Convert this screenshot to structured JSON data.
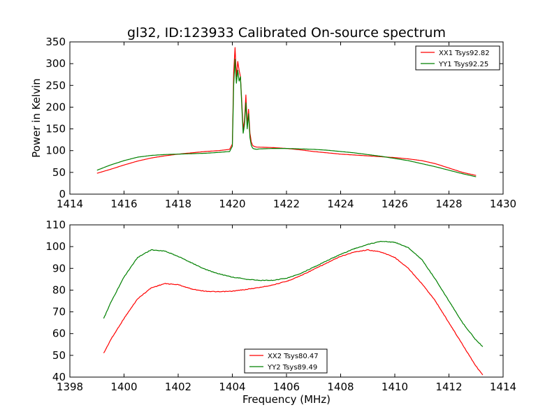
{
  "figure": {
    "title": "gl32, ID:123933 Calibrated On-source spectrum",
    "xlabel": "Frequency (MHz)"
  },
  "chart_data": [
    {
      "type": "line",
      "title": "gl32, ID:123933 Calibrated On-source spectrum",
      "xlabel": "",
      "ylabel": "Power in Kelvin",
      "xlim": [
        1414,
        1430
      ],
      "ylim": [
        0,
        350
      ],
      "xticks": [
        1414,
        1416,
        1418,
        1420,
        1422,
        1424,
        1426,
        1428,
        1430
      ],
      "yticks": [
        0,
        50,
        100,
        150,
        200,
        250,
        300,
        350
      ],
      "legend": "top-right",
      "series": [
        {
          "name": "XX1 Tsys92.82",
          "color": "#ff0000",
          "x": [
            1415.0,
            1415.5,
            1416.0,
            1416.5,
            1417.0,
            1417.5,
            1418.0,
            1418.5,
            1419.0,
            1419.5,
            1419.9,
            1420.0,
            1420.05,
            1420.1,
            1420.15,
            1420.2,
            1420.25,
            1420.3,
            1420.35,
            1420.4,
            1420.45,
            1420.5,
            1420.55,
            1420.6,
            1420.65,
            1420.7,
            1420.75,
            1420.8,
            1420.9,
            1421.0,
            1421.5,
            1422.0,
            1422.5,
            1423.0,
            1423.5,
            1424.0,
            1424.5,
            1425.0,
            1425.5,
            1426.0,
            1426.5,
            1427.0,
            1427.5,
            1428.0,
            1428.5,
            1429.0
          ],
          "values": [
            48,
            57,
            67,
            76,
            83,
            88,
            92,
            95,
            98,
            100,
            103,
            115,
            280,
            337,
            270,
            305,
            285,
            270,
            210,
            150,
            170,
            228,
            160,
            195,
            140,
            120,
            112,
            110,
            108,
            108,
            107,
            105,
            102,
            98,
            95,
            92,
            90,
            88,
            86,
            84,
            81,
            77,
            70,
            60,
            50,
            43
          ]
        },
        {
          "name": "YY1 Tsys92.25",
          "color": "#008000",
          "x": [
            1415.0,
            1415.5,
            1416.0,
            1416.5,
            1417.0,
            1417.5,
            1418.0,
            1418.5,
            1419.0,
            1419.5,
            1419.9,
            1420.0,
            1420.05,
            1420.1,
            1420.15,
            1420.2,
            1420.25,
            1420.3,
            1420.35,
            1420.4,
            1420.45,
            1420.5,
            1420.55,
            1420.6,
            1420.65,
            1420.7,
            1420.75,
            1420.8,
            1420.9,
            1421.0,
            1421.5,
            1422.0,
            1422.5,
            1423.0,
            1423.5,
            1424.0,
            1424.5,
            1425.0,
            1425.5,
            1426.0,
            1426.5,
            1427.0,
            1427.5,
            1428.0,
            1428.5,
            1429.0
          ],
          "values": [
            55,
            67,
            77,
            85,
            89,
            91,
            92,
            93,
            94,
            96,
            98,
            110,
            250,
            310,
            255,
            285,
            260,
            270,
            200,
            140,
            160,
            210,
            150,
            185,
            130,
            112,
            106,
            104,
            103,
            104,
            105,
            105,
            104,
            103,
            101,
            98,
            95,
            91,
            87,
            82,
            77,
            70,
            63,
            55,
            47,
            40
          ]
        }
      ]
    },
    {
      "type": "line",
      "title": "",
      "xlabel": "Frequency (MHz)",
      "ylabel": "",
      "xlim": [
        1398,
        1414
      ],
      "ylim": [
        40,
        110
      ],
      "xticks": [
        1398,
        1400,
        1402,
        1404,
        1406,
        1408,
        1410,
        1412,
        1414
      ],
      "yticks": [
        40,
        50,
        60,
        70,
        80,
        90,
        100,
        110
      ],
      "legend": "bottom-center",
      "series": [
        {
          "name": "XX2 Tsys80.47",
          "color": "#ff0000",
          "x": [
            1399.25,
            1399.5,
            1400.0,
            1400.5,
            1401.0,
            1401.5,
            1402.0,
            1402.5,
            1403.0,
            1403.5,
            1404.0,
            1404.5,
            1405.0,
            1405.5,
            1406.0,
            1406.5,
            1407.0,
            1407.5,
            1408.0,
            1408.5,
            1409.0,
            1409.5,
            1410.0,
            1410.5,
            1411.0,
            1411.5,
            1412.0,
            1412.5,
            1413.0,
            1413.25
          ],
          "values": [
            51,
            57,
            67,
            76,
            81,
            83,
            82.5,
            80.5,
            79.5,
            79.2,
            79.5,
            80.3,
            81.2,
            82.4,
            84,
            86.5,
            89.5,
            92.5,
            95.5,
            97.5,
            98.5,
            97.5,
            95,
            90,
            83,
            75,
            65,
            55,
            45,
            41
          ]
        },
        {
          "name": "YY2 Tsys89.49",
          "color": "#008000",
          "x": [
            1399.25,
            1399.5,
            1400.0,
            1400.5,
            1401.0,
            1401.5,
            1402.0,
            1402.5,
            1403.0,
            1403.5,
            1404.0,
            1404.5,
            1405.0,
            1405.5,
            1406.0,
            1406.5,
            1407.0,
            1407.5,
            1408.0,
            1408.5,
            1409.0,
            1409.5,
            1410.0,
            1410.5,
            1411.0,
            1411.5,
            1412.0,
            1412.5,
            1413.0,
            1413.25
          ],
          "values": [
            67,
            74,
            86,
            95,
            98.5,
            98,
            95.5,
            92.5,
            89.5,
            87.5,
            86,
            85,
            84.5,
            84.5,
            85.5,
            87.5,
            90.5,
            93.5,
            96.5,
            99,
            101,
            102.5,
            102,
            99.5,
            94,
            85,
            75,
            65,
            57,
            54
          ]
        }
      ]
    }
  ]
}
